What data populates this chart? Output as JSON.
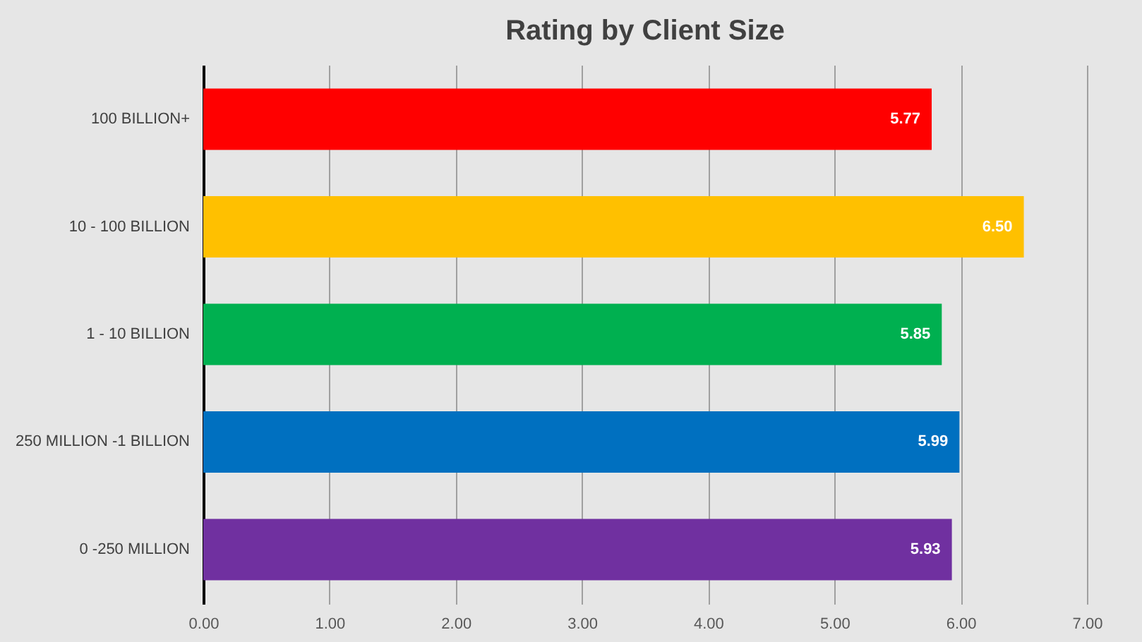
{
  "chart_data": {
    "type": "bar",
    "orientation": "horizontal",
    "title": "Rating by Client Size",
    "categories": [
      "100 BILLION+",
      "10 - 100 BILLION",
      "1 - 10 BILLION",
      "250 MILLION -1 BILLION",
      "0 -250 MILLION"
    ],
    "values": [
      5.77,
      6.5,
      5.85,
      5.99,
      5.93
    ],
    "colors": [
      "#ff0000",
      "#ffc000",
      "#00b050",
      "#0070c0",
      "#7030a0"
    ],
    "value_labels": [
      "5.77",
      "6.50",
      "5.85",
      "5.99",
      "5.93"
    ],
    "xlim": [
      0,
      7
    ],
    "xticks": [
      {
        "value": 0,
        "label": "0.00"
      },
      {
        "value": 1,
        "label": "1.00"
      },
      {
        "value": 2,
        "label": "2.00"
      },
      {
        "value": 3,
        "label": "3.00"
      },
      {
        "value": 4,
        "label": "4.00"
      },
      {
        "value": 5,
        "label": "5.00"
      },
      {
        "value": 6,
        "label": "6.00"
      },
      {
        "value": 7,
        "label": "7.00"
      }
    ],
    "grid": "x"
  }
}
